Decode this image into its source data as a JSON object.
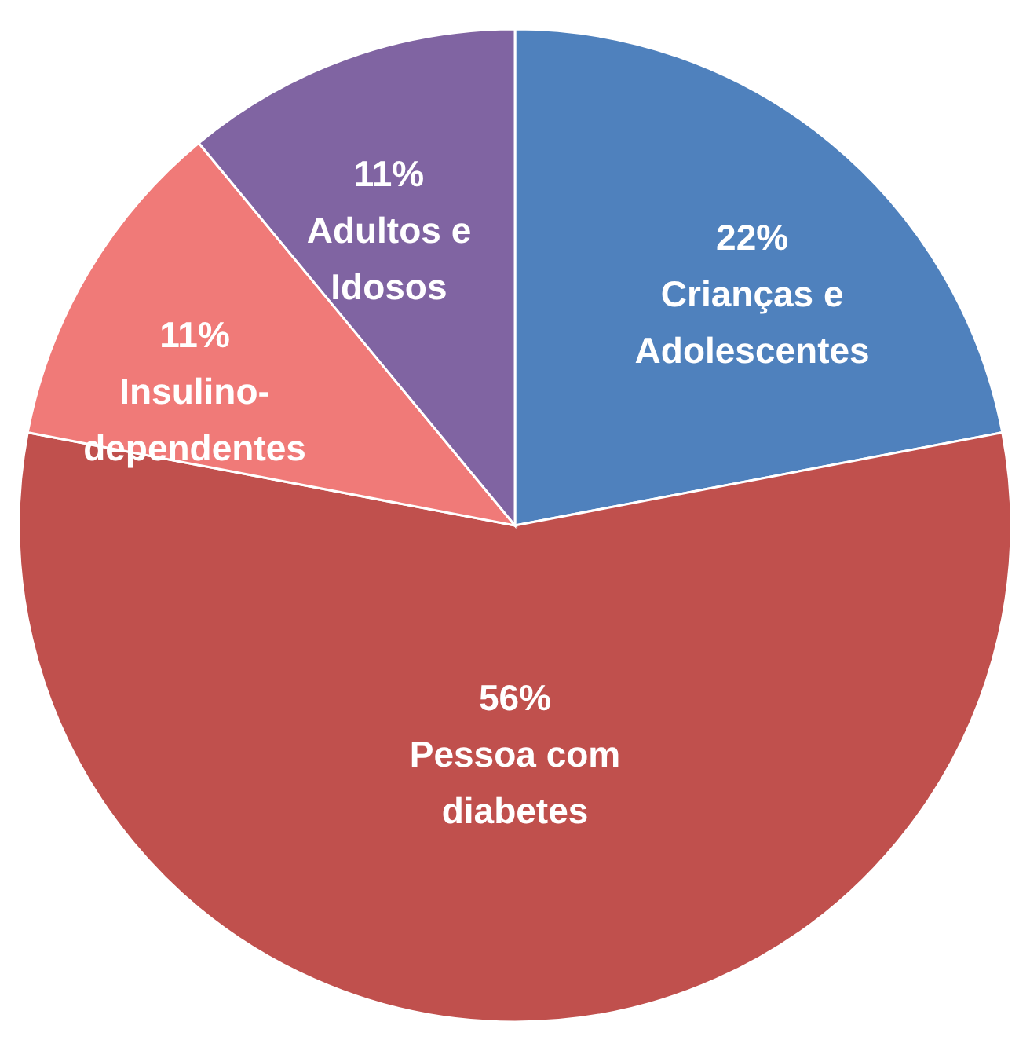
{
  "chart_data": {
    "type": "pie",
    "categories": [
      "Crianças  e\nAdolescentes",
      "Pessoa com\ndiabetes",
      "Insulino-\ndependentes",
      "Adultos e\nIdosos"
    ],
    "values": [
      22,
      56,
      11,
      11
    ],
    "value_labels": [
      "22%",
      "56%",
      "11%",
      "11%"
    ],
    "colors": [
      "#4f81bd",
      "#c0504d",
      "#f07a78",
      "#8064a2"
    ]
  }
}
